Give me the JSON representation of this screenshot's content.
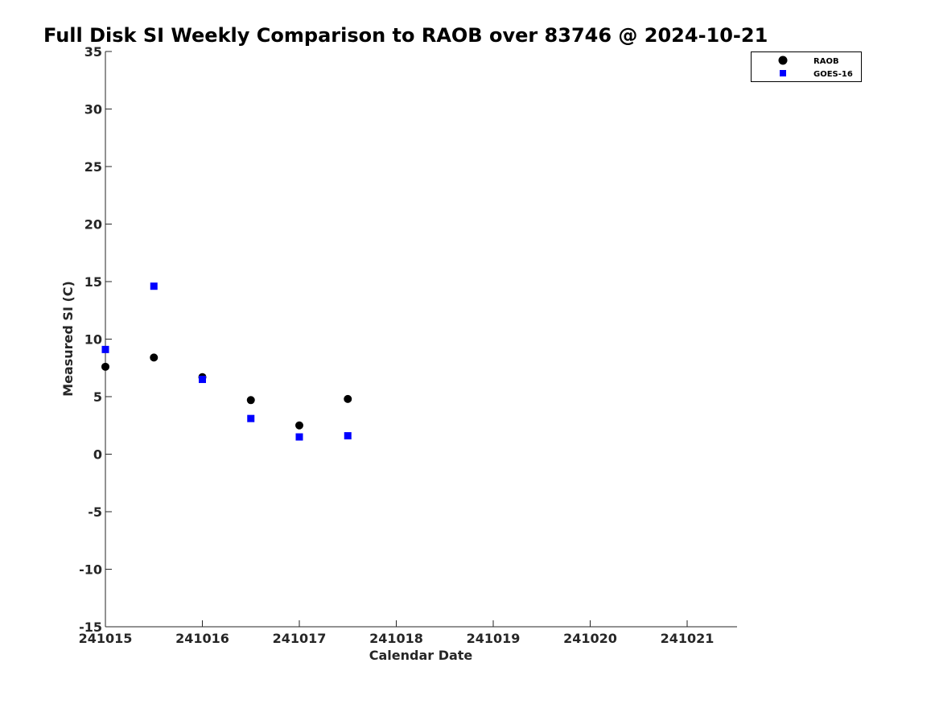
{
  "chart_data": {
    "type": "scatter",
    "title": "Full Disk SI Weekly Comparison to RAOB over 83746 @ 2024-10-21",
    "xlabel": "Calendar Date",
    "ylabel": "Measured SI (C)",
    "x_ticks": [
      {
        "value": 0,
        "label": "241015"
      },
      {
        "value": 1,
        "label": "241016"
      },
      {
        "value": 2,
        "label": "241017"
      },
      {
        "value": 3,
        "label": "241018"
      },
      {
        "value": 4,
        "label": "241019"
      },
      {
        "value": 5,
        "label": "241020"
      },
      {
        "value": 6,
        "label": "241021"
      }
    ],
    "y_ticks": [
      35,
      30,
      25,
      20,
      15,
      10,
      5,
      0,
      -5,
      -10,
      -15
    ],
    "ylim": [
      -15,
      35
    ],
    "xlim": [
      0,
      6.5
    ],
    "grid": false,
    "legend_position": "top-right",
    "series": [
      {
        "name": "RAOB",
        "marker": "circle",
        "color": "#000000",
        "points": [
          {
            "x": 0.0,
            "y": 7.6
          },
          {
            "x": 0.5,
            "y": 8.4
          },
          {
            "x": 1.0,
            "y": 6.7
          },
          {
            "x": 1.5,
            "y": 4.7
          },
          {
            "x": 2.0,
            "y": 2.5
          },
          {
            "x": 2.5,
            "y": 4.8
          }
        ]
      },
      {
        "name": "GOES-16",
        "marker": "square",
        "color": "#0000ff",
        "points": [
          {
            "x": 0.0,
            "y": 9.1
          },
          {
            "x": 0.5,
            "y": 14.6
          },
          {
            "x": 1.0,
            "y": 6.5
          },
          {
            "x": 1.5,
            "y": 3.1
          },
          {
            "x": 2.0,
            "y": 1.5
          },
          {
            "x": 2.5,
            "y": 1.6
          }
        ]
      }
    ]
  }
}
